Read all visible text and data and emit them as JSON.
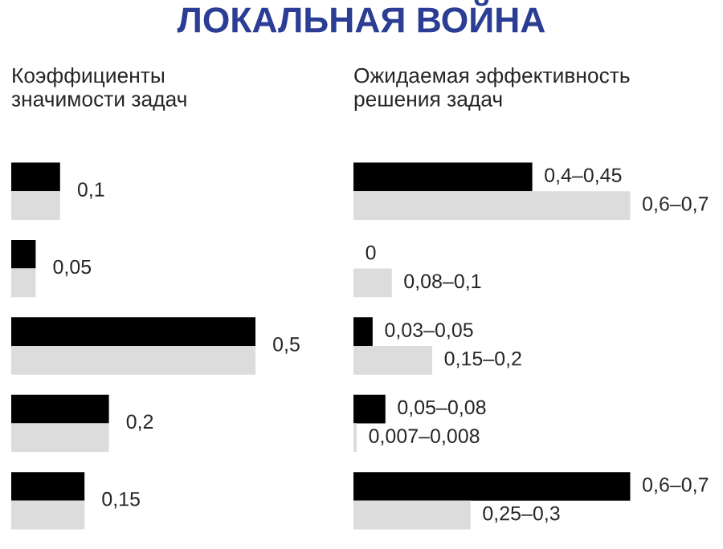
{
  "chart_data": [
    {
      "type": "bar",
      "orientation": "horizontal",
      "title": "ЛОКАЛЬНАЯ ВОЙНА",
      "subtitle": "Коэффициенты\nзначимости задач",
      "categories": [
        null,
        null,
        null,
        null,
        null
      ],
      "series": [
        {
          "color": "#000000",
          "values": [
            0.1,
            0.05,
            0.5,
            0.2,
            0.15
          ],
          "value_labels": [
            "0,1",
            "0,05",
            "0,5",
            "0,2",
            "0,15"
          ]
        },
        {
          "color": "#dcdcdc",
          "values": [
            0.1,
            0.05,
            0.5,
            0.2,
            0.15
          ]
        }
      ]
    },
    {
      "type": "bar",
      "orientation": "horizontal",
      "subtitle": "Ожидаемая эффективность\nрешения задач",
      "categories": [
        null,
        null,
        null,
        null,
        null
      ],
      "series": [
        {
          "color": "#000000",
          "values": [
            0.42,
            0,
            0.045,
            0.075,
            0.65
          ],
          "value_labels": [
            "0,4–0,45",
            "0",
            "0,03–0,05",
            "0,05–0,08",
            "0,6–0,7"
          ]
        },
        {
          "color": "#dcdcdc",
          "values": [
            0.65,
            0.09,
            0.185,
            0.0075,
            0.275
          ],
          "value_labels": [
            "0,6–0,7",
            "0,08–0,1",
            "0,15–0,2",
            "0,007–0,008",
            "0,25–0,3"
          ]
        }
      ]
    }
  ]
}
